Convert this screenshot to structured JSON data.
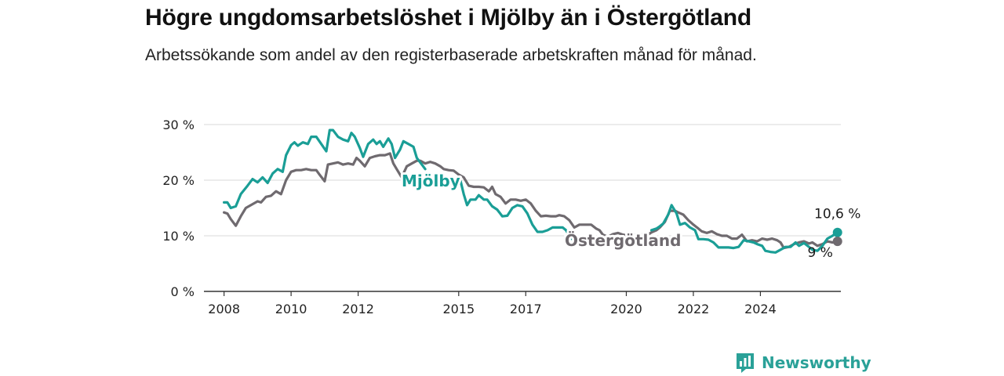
{
  "header": {
    "title": "Högre ungdomsarbetslöshet i Mjölby än i Östergötland",
    "subtitle": "Arbetssökande som andel av den registerbaserade arbetskraften månad för månad."
  },
  "brand": {
    "name": "Newsworthy",
    "icon": "bar-chart-logo-icon",
    "color": "#2aa198"
  },
  "chart_data": {
    "type": "line",
    "title": "Högre ungdomsarbetslöshet i Mjölby än i Östergötland",
    "subtitle": "Arbetssökande som andel av den registerbaserade arbetskraften månad för månad.",
    "xlabel": "",
    "ylabel": "",
    "x_ticks": [
      "2008",
      "2010",
      "2012",
      "2015",
      "2017",
      "2020",
      "2022",
      "2024"
    ],
    "y_ticks": [
      "0 %",
      "10 %",
      "20 %",
      "30 %"
    ],
    "xlim": [
      2007.4,
      2026.4
    ],
    "ylim": [
      0,
      30
    ],
    "grid": "horizontal",
    "series": [
      {
        "name": "Mjölby",
        "color": "#1a9e96",
        "end_label": "10,6 %",
        "points": [
          [
            2008.0,
            16.0
          ],
          [
            2008.1,
            16.0
          ],
          [
            2008.2,
            15.0
          ],
          [
            2008.35,
            15.3
          ],
          [
            2008.5,
            17.5
          ],
          [
            2008.7,
            19.0
          ],
          [
            2008.85,
            20.2
          ],
          [
            2009.0,
            19.6
          ],
          [
            2009.15,
            20.5
          ],
          [
            2009.3,
            19.5
          ],
          [
            2009.45,
            21.2
          ],
          [
            2009.6,
            22.0
          ],
          [
            2009.75,
            21.5
          ],
          [
            2009.85,
            24.5
          ],
          [
            2010.0,
            26.3
          ],
          [
            2010.1,
            26.8
          ],
          [
            2010.2,
            26.2
          ],
          [
            2010.35,
            26.8
          ],
          [
            2010.5,
            26.5
          ],
          [
            2010.6,
            27.8
          ],
          [
            2010.75,
            27.8
          ],
          [
            2010.9,
            26.5
          ],
          [
            2011.05,
            25.2
          ],
          [
            2011.15,
            29.0
          ],
          [
            2011.25,
            29.0
          ],
          [
            2011.4,
            27.8
          ],
          [
            2011.55,
            27.3
          ],
          [
            2011.7,
            27.0
          ],
          [
            2011.8,
            28.5
          ],
          [
            2011.9,
            27.8
          ],
          [
            2012.05,
            25.8
          ],
          [
            2012.15,
            24.2
          ],
          [
            2012.3,
            26.5
          ],
          [
            2012.45,
            27.3
          ],
          [
            2012.55,
            26.5
          ],
          [
            2012.65,
            27.0
          ],
          [
            2012.75,
            26.0
          ],
          [
            2012.9,
            27.5
          ],
          [
            2013.0,
            26.5
          ],
          [
            2013.1,
            24.0
          ],
          [
            2013.25,
            25.5
          ],
          [
            2013.35,
            27.0
          ],
          [
            2013.5,
            26.5
          ],
          [
            2013.65,
            26.0
          ],
          [
            2013.75,
            24.0
          ],
          [
            2013.9,
            22.8
          ],
          [
            2014.0,
            22.0
          ],
          null,
          [
            2015.05,
            20.0
          ],
          [
            2015.15,
            17.5
          ],
          [
            2015.25,
            15.5
          ],
          [
            2015.35,
            16.5
          ],
          [
            2015.5,
            16.5
          ],
          [
            2015.6,
            17.3
          ],
          [
            2015.75,
            16.5
          ],
          [
            2015.85,
            16.5
          ],
          [
            2016.0,
            15.3
          ],
          [
            2016.15,
            14.7
          ],
          [
            2016.3,
            13.5
          ],
          [
            2016.45,
            13.6
          ],
          [
            2016.6,
            15.0
          ],
          [
            2016.75,
            15.5
          ],
          [
            2016.9,
            15.3
          ],
          [
            2017.05,
            14.0
          ],
          [
            2017.2,
            12.0
          ],
          [
            2017.35,
            10.7
          ],
          [
            2017.5,
            10.7
          ],
          [
            2017.65,
            11.0
          ],
          [
            2017.8,
            11.5
          ],
          [
            2017.95,
            11.5
          ],
          [
            2018.1,
            11.5
          ],
          [
            2018.2,
            11.0
          ],
          [
            2018.35,
            9.5
          ],
          [
            2018.45,
            9.3
          ],
          [
            2018.6,
            8.5
          ],
          [
            2018.7,
            8.5
          ],
          [
            2018.8,
            9.5
          ],
          null,
          [
            2020.1,
            7.5
          ],
          null,
          [
            2020.75,
            11.0
          ],
          [
            2020.9,
            11.3
          ],
          [
            2021.0,
            11.7
          ],
          [
            2021.1,
            12.2
          ],
          [
            2021.25,
            13.8
          ],
          [
            2021.35,
            15.5
          ],
          [
            2021.5,
            14.0
          ],
          [
            2021.6,
            12.0
          ],
          [
            2021.75,
            12.3
          ],
          [
            2021.9,
            11.5
          ],
          [
            2022.05,
            11.0
          ],
          [
            2022.15,
            9.4
          ],
          [
            2022.3,
            9.4
          ],
          [
            2022.45,
            9.3
          ],
          [
            2022.6,
            8.8
          ],
          [
            2022.75,
            7.9
          ],
          [
            2022.9,
            7.9
          ],
          [
            2023.05,
            7.9
          ],
          [
            2023.2,
            7.8
          ],
          [
            2023.35,
            8.0
          ],
          [
            2023.5,
            9.2
          ],
          [
            2023.65,
            9.0
          ],
          [
            2023.8,
            8.8
          ],
          [
            2023.9,
            8.5
          ],
          [
            2024.05,
            8.2
          ],
          [
            2024.15,
            7.3
          ],
          [
            2024.3,
            7.1
          ],
          [
            2024.45,
            7.0
          ],
          [
            2024.6,
            7.5
          ],
          [
            2024.75,
            8.0
          ],
          [
            2024.9,
            8.0
          ],
          [
            2025.05,
            8.8
          ],
          [
            2025.15,
            8.2
          ],
          [
            2025.3,
            8.7
          ],
          [
            2025.45,
            8.0
          ],
          [
            2025.55,
            7.5
          ],
          [
            2025.7,
            7.3
          ],
          [
            2025.85,
            8.2
          ],
          [
            2026.0,
            9.5
          ],
          [
            2026.15,
            10.0
          ],
          [
            2026.3,
            10.6
          ]
        ]
      },
      {
        "name": "Östergötland",
        "color": "#6f6a6f",
        "end_label": "9 %",
        "points": [
          [
            2008.0,
            14.2
          ],
          [
            2008.1,
            14.0
          ],
          [
            2008.2,
            13.0
          ],
          [
            2008.35,
            11.8
          ],
          [
            2008.5,
            13.5
          ],
          [
            2008.65,
            15.0
          ],
          [
            2008.8,
            15.5
          ],
          [
            2009.0,
            16.2
          ],
          [
            2009.1,
            16.0
          ],
          [
            2009.25,
            17.0
          ],
          [
            2009.4,
            17.2
          ],
          [
            2009.55,
            18.0
          ],
          [
            2009.7,
            17.5
          ],
          [
            2009.85,
            20.0
          ],
          [
            2010.0,
            21.5
          ],
          [
            2010.15,
            21.8
          ],
          [
            2010.3,
            21.8
          ],
          [
            2010.45,
            22.0
          ],
          [
            2010.6,
            21.8
          ],
          [
            2010.75,
            21.8
          ],
          [
            2010.85,
            21.0
          ],
          [
            2011.0,
            19.8
          ],
          [
            2011.1,
            22.8
          ],
          [
            2011.25,
            23.0
          ],
          [
            2011.4,
            23.2
          ],
          [
            2011.55,
            22.8
          ],
          [
            2011.7,
            23.0
          ],
          [
            2011.85,
            22.8
          ],
          [
            2011.95,
            24.0
          ],
          [
            2012.05,
            23.5
          ],
          [
            2012.2,
            22.5
          ],
          [
            2012.35,
            24.0
          ],
          [
            2012.5,
            24.3
          ],
          [
            2012.65,
            24.5
          ],
          [
            2012.8,
            24.5
          ],
          [
            2012.95,
            24.8
          ],
          [
            2013.05,
            23.0
          ],
          [
            2013.15,
            22.0
          ],
          [
            2013.3,
            20.5
          ],
          [
            2013.45,
            22.5
          ],
          [
            2013.6,
            23.0
          ],
          [
            2013.75,
            23.5
          ],
          [
            2013.85,
            23.5
          ],
          [
            2014.0,
            23.0
          ],
          [
            2014.15,
            23.3
          ],
          [
            2014.3,
            23.0
          ],
          [
            2014.45,
            22.5
          ],
          [
            2014.55,
            22.0
          ],
          [
            2014.7,
            21.8
          ],
          [
            2014.85,
            21.7
          ],
          [
            2015.0,
            21.0
          ],
          [
            2015.15,
            20.5
          ],
          [
            2015.3,
            19.0
          ],
          [
            2015.45,
            18.8
          ],
          [
            2015.6,
            18.8
          ],
          [
            2015.75,
            18.7
          ],
          [
            2015.9,
            18.0
          ],
          [
            2016.0,
            18.8
          ],
          [
            2016.1,
            17.5
          ],
          [
            2016.25,
            17.0
          ],
          [
            2016.4,
            15.8
          ],
          [
            2016.55,
            16.5
          ],
          [
            2016.7,
            16.5
          ],
          [
            2016.85,
            16.3
          ],
          [
            2017.0,
            16.5
          ],
          [
            2017.15,
            15.8
          ],
          [
            2017.3,
            14.5
          ],
          [
            2017.45,
            13.5
          ],
          [
            2017.6,
            13.6
          ],
          [
            2017.75,
            13.5
          ],
          [
            2017.9,
            13.5
          ],
          [
            2018.0,
            13.7
          ],
          [
            2018.15,
            13.5
          ],
          [
            2018.3,
            12.8
          ],
          [
            2018.45,
            11.5
          ],
          [
            2018.6,
            12.0
          ],
          [
            2018.8,
            12.0
          ],
          [
            2018.95,
            12.0
          ],
          [
            2019.1,
            11.3
          ],
          [
            2019.2,
            11.0
          ],
          [
            2019.3,
            10.2
          ],
          [
            2019.45,
            9.8
          ],
          [
            2019.6,
            10.3
          ],
          [
            2019.75,
            10.5
          ],
          [
            2019.9,
            10.2
          ],
          [
            2020.05,
            10.0
          ],
          [
            2020.2,
            10.3
          ],
          [
            2020.35,
            10.0
          ],
          [
            2020.5,
            10.3
          ],
          [
            2020.6,
            10.0
          ],
          [
            2020.75,
            10.6
          ],
          [
            2020.9,
            11.0
          ],
          [
            2021.0,
            11.5
          ],
          [
            2021.15,
            12.5
          ],
          [
            2021.3,
            14.5
          ],
          [
            2021.45,
            14.5
          ],
          [
            2021.55,
            14.2
          ],
          [
            2021.7,
            13.8
          ],
          [
            2021.85,
            12.8
          ],
          [
            2022.0,
            12.0
          ],
          [
            2022.15,
            11.3
          ],
          [
            2022.25,
            10.8
          ],
          [
            2022.4,
            10.5
          ],
          [
            2022.55,
            10.8
          ],
          [
            2022.7,
            10.3
          ],
          [
            2022.85,
            10.0
          ],
          [
            2023.0,
            10.0
          ],
          [
            2023.15,
            9.5
          ],
          [
            2023.3,
            9.5
          ],
          [
            2023.45,
            10.2
          ],
          [
            2023.6,
            9.0
          ],
          [
            2023.75,
            9.2
          ],
          [
            2023.9,
            9.0
          ],
          [
            2024.05,
            9.5
          ],
          [
            2024.2,
            9.3
          ],
          [
            2024.35,
            9.5
          ],
          [
            2024.5,
            9.2
          ],
          [
            2024.6,
            8.8
          ],
          [
            2024.7,
            7.8
          ],
          [
            2024.85,
            8.0
          ],
          [
            2025.0,
            8.5
          ],
          [
            2025.15,
            8.8
          ],
          [
            2025.3,
            9.0
          ],
          [
            2025.45,
            8.6
          ],
          [
            2025.55,
            8.8
          ],
          [
            2025.7,
            8.2
          ],
          [
            2025.85,
            8.5
          ],
          [
            2026.0,
            9.0
          ],
          [
            2026.15,
            8.8
          ],
          [
            2026.3,
            9.0
          ]
        ]
      }
    ]
  }
}
